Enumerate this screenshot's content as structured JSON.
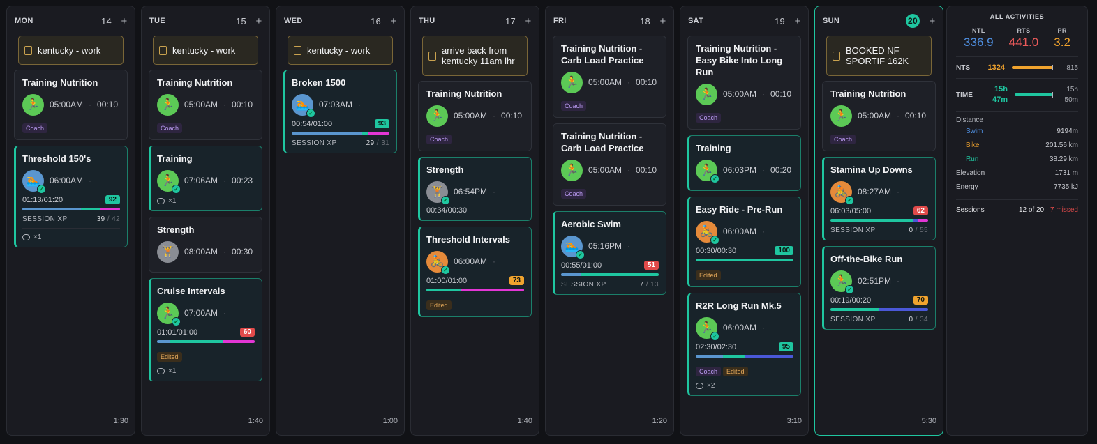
{
  "colors": {
    "accent": "#1fc6a0",
    "run": "#5cc956",
    "swim": "#5a96cf",
    "bike": "#e58a3a",
    "strength": "#8a8d94",
    "score_green": "#1fc6a0",
    "score_red": "#e04a4a",
    "score_orange": "#f0a32e"
  },
  "days": [
    {
      "name": "MON",
      "num": "14",
      "total": "1:30",
      "cards": [
        {
          "kind": "note",
          "title": "kentucky - work"
        },
        {
          "kind": "workout",
          "title": "Training Nutrition",
          "sport": "run",
          "time": "05:00AM",
          "dur": "00:10",
          "tags": [
            "Coach"
          ]
        },
        {
          "kind": "done",
          "title": "Threshold 150's",
          "sport": "swim",
          "time": "06:00AM",
          "progress": "01:13/01:20",
          "score": "92",
          "scoreColor": "g",
          "bar": [
            [
              "#5a96cf",
              60
            ],
            [
              "#1fc6a0",
              20
            ],
            [
              "#e236d5",
              20
            ]
          ],
          "xp": "39",
          "xpMax": "42",
          "comments": "×1"
        }
      ]
    },
    {
      "name": "TUE",
      "num": "15",
      "total": "1:40",
      "cards": [
        {
          "kind": "note",
          "title": "kentucky - work"
        },
        {
          "kind": "workout",
          "title": "Training Nutrition",
          "sport": "run",
          "time": "05:00AM",
          "dur": "00:10",
          "tags": [
            "Coach"
          ]
        },
        {
          "kind": "done",
          "title": "Training",
          "sport": "run",
          "time": "07:06AM",
          "dur": "00:23",
          "comments": "×1",
          "nb": true
        },
        {
          "kind": "workout",
          "title": "Strength",
          "sport": "str",
          "time": "08:00AM",
          "dur": "00:30",
          "nocheck": true
        },
        {
          "kind": "done",
          "title": "Cruise Intervals",
          "sport": "run",
          "time": "07:00AM",
          "progress": "01:01/01:00",
          "score": "60",
          "scoreColor": "r",
          "bar": [
            [
              "#5a96cf",
              13
            ],
            [
              "#1fc6a0",
              54
            ],
            [
              "#e236d5",
              33
            ]
          ],
          "tags": [
            "Edited"
          ],
          "comments": "×1",
          "nb": true
        }
      ]
    },
    {
      "name": "WED",
      "num": "16",
      "total": "1:00",
      "cards": [
        {
          "kind": "note",
          "title": "kentucky - work"
        },
        {
          "kind": "done",
          "title": "Broken 1500",
          "sport": "swim",
          "time": "07:03AM",
          "progress": "00:54/01:00",
          "score": "93",
          "scoreColor": "g",
          "bar": [
            [
              "#5a96cf",
              72
            ],
            [
              "#1fc6a0",
              6
            ],
            [
              "#e236d5",
              22
            ]
          ],
          "xp": "29",
          "xpMax": "31"
        }
      ]
    },
    {
      "name": "THU",
      "num": "17",
      "total": "1:40",
      "cards": [
        {
          "kind": "note",
          "title": "arrive back from kentucky 11am lhr",
          "tall": true
        },
        {
          "kind": "workout",
          "title": "Training Nutrition",
          "sport": "run",
          "time": "05:00AM",
          "dur": "00:10",
          "tags": [
            "Coach"
          ]
        },
        {
          "kind": "done",
          "title": "Strength",
          "sport": "str",
          "time": "06:54PM",
          "progress": "00:34/00:30"
        },
        {
          "kind": "done",
          "title": "Threshold Intervals",
          "sport": "bike",
          "time": "06:00AM",
          "progress": "01:00/01:00",
          "score": "73",
          "scoreColor": "o",
          "bar": [
            [
              "#1fc6a0",
              35
            ],
            [
              "#e236d5",
              65
            ]
          ],
          "tags": [
            "Edited"
          ]
        }
      ]
    },
    {
      "name": "FRI",
      "num": "18",
      "total": "1:20",
      "cards": [
        {
          "kind": "workout",
          "title": "Training Nutrition - Carb Load Practice",
          "sport": "run",
          "time": "05:00AM",
          "dur": "00:10",
          "tags": [
            "Coach"
          ]
        },
        {
          "kind": "workout",
          "title": "Training Nutrition - Carb Load Practice",
          "sport": "run",
          "time": "05:00AM",
          "dur": "00:10",
          "tags": [
            "Coach"
          ]
        },
        {
          "kind": "done",
          "title": "Aerobic Swim",
          "sport": "swim",
          "time": "05:16PM",
          "progress": "00:55/01:00",
          "score": "51",
          "scoreColor": "r",
          "bar": [
            [
              "#5a96cf",
              20
            ],
            [
              "#1fc6a0",
              80
            ]
          ],
          "xp": "7",
          "xpMax": "13"
        }
      ]
    },
    {
      "name": "SAT",
      "num": "19",
      "total": "3:10",
      "cards": [
        {
          "kind": "workout",
          "title": "Training Nutrition - Easy Bike Into Long Run",
          "sport": "run",
          "time": "05:00AM",
          "dur": "00:10",
          "tags": [
            "Coach"
          ]
        },
        {
          "kind": "done",
          "title": "Training",
          "sport": "run",
          "time": "06:03PM",
          "dur": "00:20"
        },
        {
          "kind": "done",
          "title": "Easy Ride - Pre-Run",
          "sport": "bike",
          "time": "06:00AM",
          "progress": "00:30/00:30",
          "score": "100",
          "scoreColor": "g",
          "bar": [
            [
              "#1fc6a0",
              100
            ]
          ],
          "tags": [
            "Edited"
          ]
        },
        {
          "kind": "done",
          "title": "R2R Long Run Mk.5",
          "sport": "run",
          "time": "06:00AM",
          "progress": "02:30/02:30",
          "score": "95",
          "scoreColor": "g",
          "bar": [
            [
              "#5a96cf",
              28
            ],
            [
              "#1fc6a0",
              22
            ],
            [
              "#4a58d8",
              50
            ]
          ],
          "tags": [
            "Coach",
            "Edited"
          ],
          "comments": "×2",
          "nb": true
        }
      ]
    },
    {
      "name": "SUN",
      "num": "20",
      "today": true,
      "total": "5:30",
      "cards": [
        {
          "kind": "note",
          "title": "BOOKED NF SPORTIF 162K",
          "tall": true
        },
        {
          "kind": "workout",
          "title": "Training Nutrition",
          "sport": "run",
          "time": "05:00AM",
          "dur": "00:10",
          "tags": [
            "Coach"
          ]
        },
        {
          "kind": "done",
          "title": "Stamina Up Downs",
          "sport": "bike",
          "time": "08:27AM",
          "progress": "06:03/05:00",
          "score": "62",
          "scoreColor": "r",
          "bar": [
            [
              "#1fc6a0",
              85
            ],
            [
              "#4a58d8",
              5
            ],
            [
              "#e236d5",
              10
            ]
          ],
          "xp": "0",
          "xpMax": "55"
        },
        {
          "kind": "done",
          "title": "Off-the-Bike Run",
          "sport": "run",
          "time": "02:51PM",
          "progress": "00:19/00:20",
          "score": "70",
          "scoreColor": "o",
          "bar": [
            [
              "#1fc6a0",
              50
            ],
            [
              "#4a58d8",
              50
            ]
          ],
          "xp": "0",
          "xpMax": "34"
        }
      ]
    }
  ],
  "labels": {
    "session_xp": "SESSION XP",
    "coach": "Coach",
    "edited": "Edited"
  },
  "summary": {
    "title": "ALL ACTIVITIES",
    "metrics": [
      {
        "label": "NTL",
        "value": "336.9",
        "color": "#4f8fe0"
      },
      {
        "label": "RTS",
        "value": "441.0",
        "color": "#ea5a5a"
      },
      {
        "label": "PR",
        "value": "3.2",
        "color": "#f0a32e"
      }
    ],
    "nts": {
      "label": "NTS",
      "value": "1324",
      "target": "815",
      "fill": 1.0,
      "color": "#f0a32e"
    },
    "time": {
      "label": "TIME",
      "value": "15h 47m",
      "target": "15h 50m",
      "fill": 0.99,
      "color": "#1fc6a0"
    },
    "distance_label": "Distance",
    "sports": [
      {
        "name": "Swim",
        "value": "9194m",
        "color": "#4f8fe0"
      },
      {
        "name": "Bike",
        "value": "201.56 km",
        "color": "#f0a32e"
      },
      {
        "name": "Run",
        "value": "38.29 km",
        "color": "#1fc6a0"
      }
    ],
    "elevation": {
      "label": "Elevation",
      "value": "1731 m"
    },
    "energy": {
      "label": "Energy",
      "value": "7735 kJ"
    },
    "sessions": {
      "label": "Sessions",
      "value": "12 of 20",
      "missed": "· 7 missed"
    }
  }
}
